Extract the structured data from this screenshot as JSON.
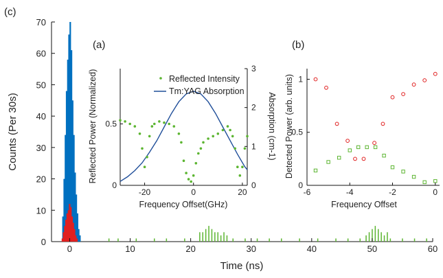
{
  "panel_labels": {
    "c": "(c)",
    "a": "(a)",
    "b": "(b)"
  },
  "chart_data": [
    {
      "id": "c",
      "type": "histogram",
      "xlabel": "Time (ns)",
      "ylabel": "Counts (Per 30s)",
      "xlim": [
        -3,
        60
      ],
      "ylim": [
        0,
        70
      ],
      "xticks": [
        0,
        10,
        20,
        30,
        40,
        50,
        60
      ],
      "yticks": [
        0,
        10,
        20,
        30,
        40,
        50,
        60,
        70
      ],
      "series": [
        {
          "color": "#0070c0",
          "x": [
            -1.1,
            -0.9,
            -0.7,
            -0.5,
            -0.3,
            -0.1,
            0.1,
            0.3,
            0.5,
            0.7,
            0.9,
            1.1,
            1.3,
            1.5,
            1.7
          ],
          "values": [
            8,
            20,
            34,
            48,
            58,
            66,
            70,
            61,
            45,
            34,
            22,
            15,
            9,
            4,
            2
          ]
        },
        {
          "color": "#e02020",
          "x": [
            -1.2,
            -1.0,
            -0.8,
            -0.6,
            -0.4,
            -0.2,
            0.0,
            0.2,
            0.4,
            0.6,
            0.8,
            1.0,
            1.2
          ],
          "values": [
            1,
            3,
            5,
            7,
            9,
            10,
            12,
            11,
            8,
            6,
            4,
            2,
            1
          ]
        },
        {
          "color": "#5cb531",
          "x": [
            6.5,
            8,
            11,
            14,
            16,
            19,
            21.5,
            22,
            22.5,
            23,
            23.5,
            24,
            24.5,
            25,
            25.5,
            26,
            27,
            29,
            31,
            33,
            35,
            38,
            41,
            44,
            46,
            48,
            49,
            49.5,
            50,
            50.5,
            51,
            51.5,
            52,
            52.5,
            53,
            55,
            57,
            59
          ],
          "values": [
            1,
            1,
            1,
            1,
            1,
            1,
            3,
            3,
            4,
            5,
            4,
            3,
            3,
            2,
            3,
            2,
            1,
            1,
            1,
            1,
            1,
            1,
            1,
            1,
            1,
            1,
            2,
            3,
            4,
            5,
            4,
            3,
            2,
            3,
            1,
            1,
            1,
            1
          ]
        }
      ]
    },
    {
      "id": "a",
      "type": "scatter+line",
      "xlabel": "Frequency Offset(GHz)",
      "ylabel": "Reflected Power (Normalized)",
      "ylabel_right": "Absorption  (cm-1)",
      "xlim": [
        -30,
        22
      ],
      "ylim": [
        0,
        0.95
      ],
      "ylim_right": [
        0,
        3
      ],
      "xticks": [
        -20,
        0,
        20
      ],
      "yticks": [
        0,
        0.5
      ],
      "yticks_right": [
        0,
        1,
        2,
        3
      ],
      "legend": [
        "Reflected Intensity",
        "Tm:YAG Absorption"
      ],
      "series": [
        {
          "name": "Reflected Intensity",
          "color": "#5cb531",
          "x": [
            -30,
            -28,
            -26,
            -24,
            -22,
            -21,
            -20,
            -19,
            -18,
            -17,
            -16,
            -14,
            -12,
            -10,
            -8,
            -6,
            -5,
            -4,
            -3,
            -2,
            -1,
            0,
            1,
            2,
            3,
            4,
            6,
            8,
            10,
            12,
            14,
            15,
            16,
            17,
            18,
            19,
            20,
            21,
            22
          ],
          "y": [
            0.53,
            0.52,
            0.5,
            0.48,
            0.42,
            0.3,
            0.15,
            0.23,
            0.4,
            0.48,
            0.5,
            0.52,
            0.51,
            0.5,
            0.48,
            0.42,
            0.35,
            0.2,
            0.1,
            0.05,
            0.03,
            0.08,
            0.18,
            0.26,
            0.3,
            0.35,
            0.38,
            0.4,
            0.42,
            0.45,
            0.48,
            0.45,
            0.4,
            0.3,
            0.15,
            0.08,
            0.15,
            0.3,
            0.4
          ]
        },
        {
          "name": "Tm:YAG Absorption",
          "color": "#1f4e99",
          "x": [
            -30,
            -27,
            -24,
            -21,
            -18,
            -15,
            -12,
            -9,
            -6,
            -3,
            0,
            3,
            6,
            9,
            12,
            15,
            18,
            21,
            22
          ],
          "y_right": [
            0.1,
            0.22,
            0.38,
            0.58,
            0.85,
            1.15,
            1.5,
            1.85,
            2.15,
            2.35,
            2.42,
            2.35,
            2.15,
            1.85,
            1.5,
            1.15,
            0.8,
            0.48,
            0.4
          ]
        }
      ]
    },
    {
      "id": "b",
      "type": "scatter",
      "xlabel": "Frequency Offset",
      "ylabel": "Detected Power (arb. units)",
      "xlim": [
        -6,
        0.2
      ],
      "ylim": [
        0,
        1.1
      ],
      "xticks": [
        -6,
        -4,
        -2,
        0
      ],
      "yticks": [
        0,
        0.5,
        1
      ],
      "series": [
        {
          "color": "#e02020",
          "marker": "circle",
          "x": [
            -5.6,
            -5.1,
            -4.6,
            -4.1,
            -3.75,
            -3.35,
            -2.85,
            -2.45,
            -2.0,
            -1.5,
            -1.0,
            -0.5,
            0.0
          ],
          "y": [
            1.0,
            0.92,
            0.58,
            0.42,
            0.25,
            0.25,
            0.4,
            0.58,
            0.83,
            0.86,
            0.95,
            0.99,
            1.05
          ]
        },
        {
          "color": "#5cb531",
          "marker": "square",
          "x": [
            -5.6,
            -5.0,
            -4.5,
            -4.0,
            -3.6,
            -3.2,
            -2.8,
            -2.4,
            -2.0,
            -1.5,
            -1.0,
            -0.5,
            0.0
          ],
          "y": [
            0.14,
            0.22,
            0.26,
            0.33,
            0.36,
            0.36,
            0.36,
            0.28,
            0.17,
            0.13,
            0.08,
            0.03,
            0.04
          ]
        }
      ]
    }
  ]
}
